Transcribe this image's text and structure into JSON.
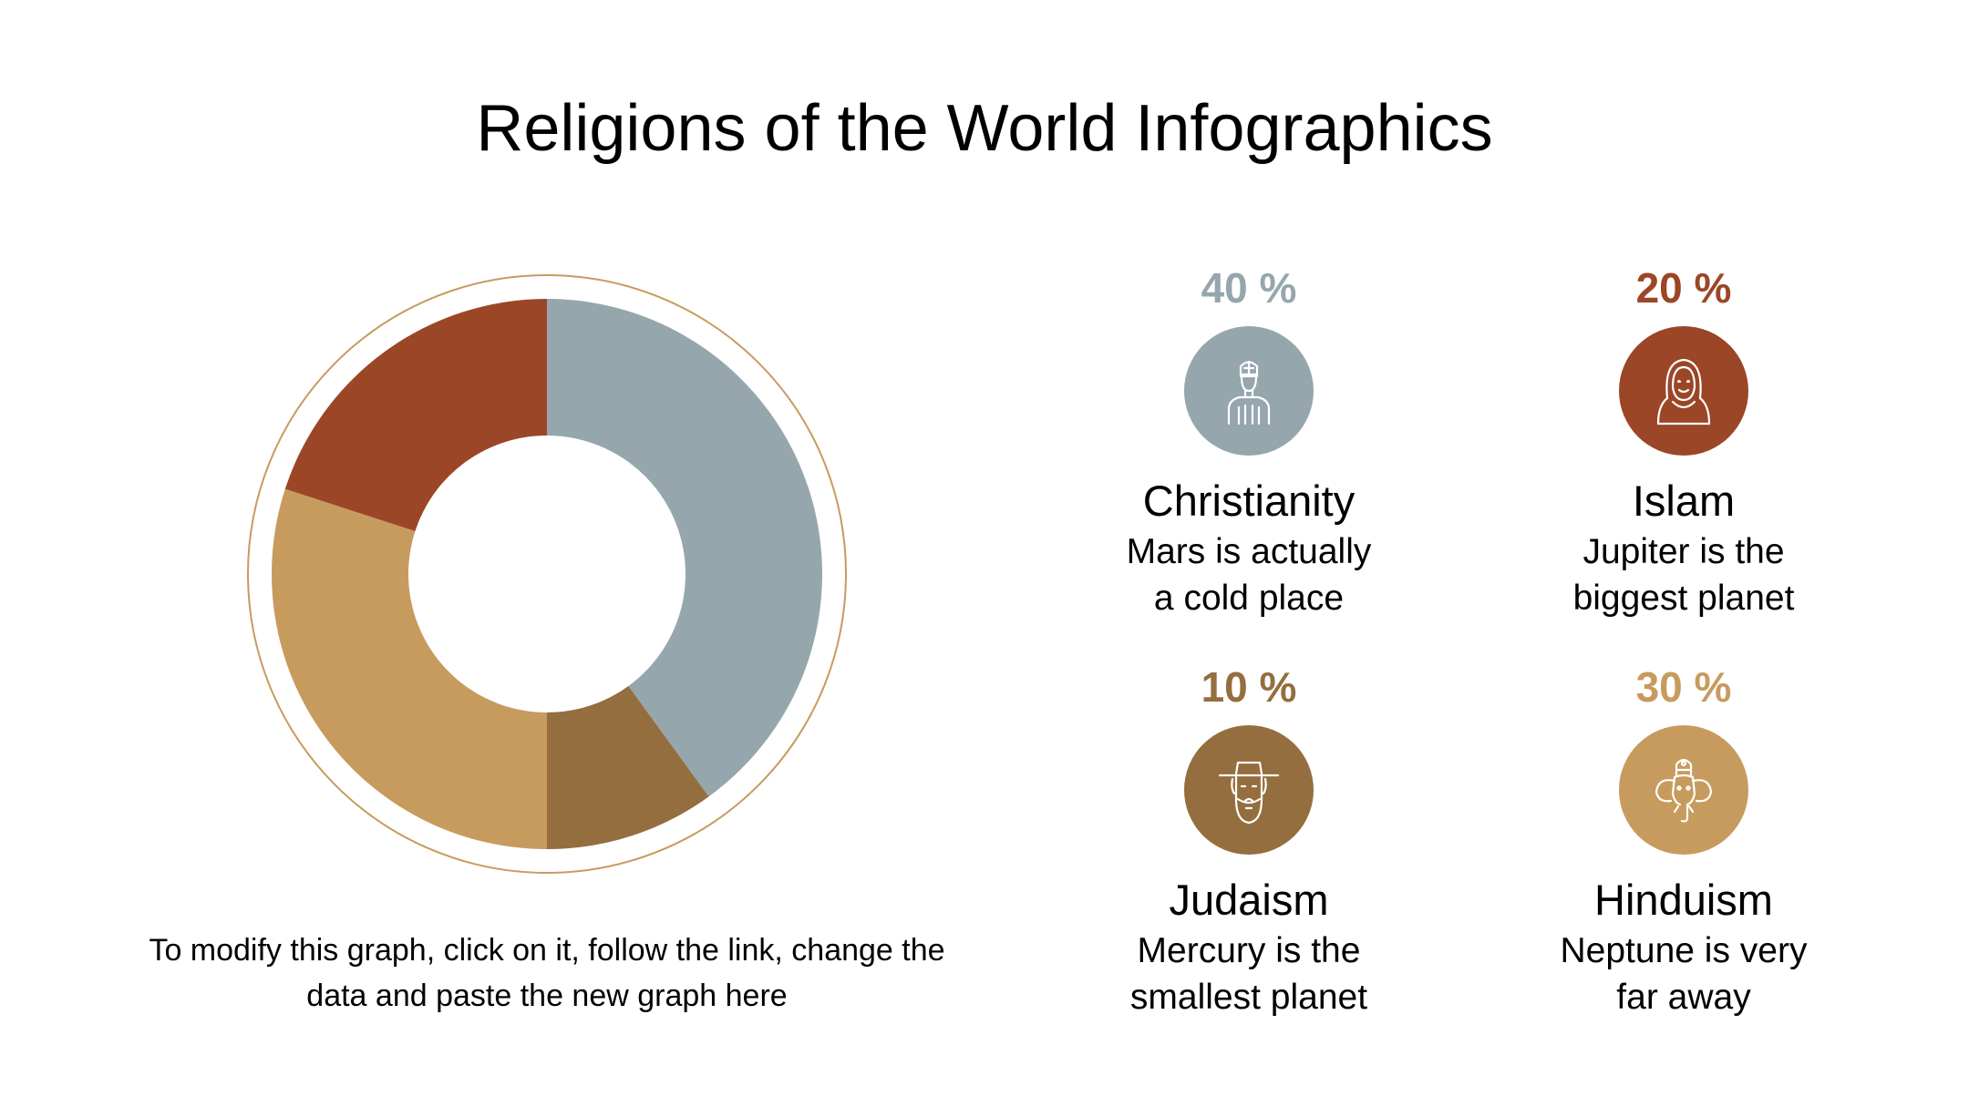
{
  "title": "Religions of the World Infographics",
  "caption": {
    "line1": "To modify this graph, click on it, follow the link, change the",
    "line2": "data and paste the new graph here"
  },
  "colors": {
    "christianity": "#96a6ad",
    "islam": "#9b4627",
    "judaism": "#946e3e",
    "hinduism": "#c79b5e",
    "ring": "#c79b5e"
  },
  "chart_data": {
    "type": "pie",
    "variant": "donut",
    "categories": [
      "Christianity",
      "Judaism",
      "Hinduism",
      "Islam"
    ],
    "values": [
      40,
      10,
      30,
      20
    ],
    "unit": "%",
    "legend": "right"
  },
  "items": [
    {
      "key": "christianity",
      "percent": "40 %",
      "name": "Christianity",
      "desc1": "Mars is actually",
      "desc2": "a cold place",
      "icon": "priest-icon"
    },
    {
      "key": "islam",
      "percent": "20 %",
      "name": "Islam",
      "desc1": "Jupiter is the",
      "desc2": "biggest planet",
      "icon": "hijab-woman-icon"
    },
    {
      "key": "judaism",
      "percent": "10 %",
      "name": "Judaism",
      "desc1": "Mercury is the",
      "desc2": "smallest planet",
      "icon": "rabbi-icon"
    },
    {
      "key": "hinduism",
      "percent": "30 %",
      "name": "Hinduism",
      "desc1": "Neptune is very",
      "desc2": "far away",
      "icon": "ganesha-icon"
    }
  ]
}
